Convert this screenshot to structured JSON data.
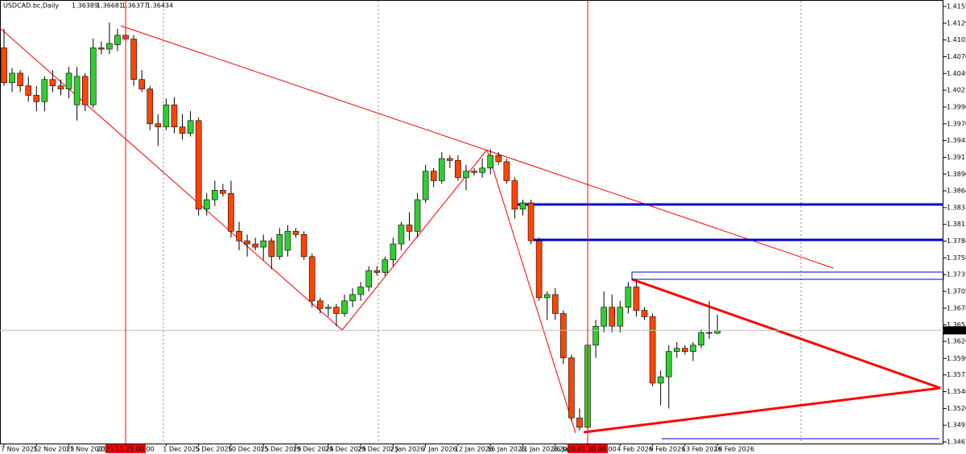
{
  "chart_data": {
    "type": "candlestick",
    "title": "USDCAD.bc,Daily",
    "categories": [
      "7 Nov 2025",
      null,
      null,
      null,
      "12 Nov 2025",
      null,
      null,
      null,
      "17 Nov 2025",
      null,
      null,
      null,
      null,
      null,
      null,
      "2025.11.25 00:00",
      null,
      null,
      null,
      null,
      "1 Dec 2025",
      null,
      null,
      null,
      "5 Dec 2025",
      null,
      null,
      null,
      "10 Dec 2025",
      null,
      null,
      null,
      "15 Dec 2025",
      null,
      null,
      null,
      "19 Dec 2025",
      null,
      null,
      null,
      "24 Dec 2025",
      null,
      null,
      null,
      "29 Dec 2025",
      null,
      null,
      null,
      "2 Jan 2026",
      null,
      null,
      null,
      "7 Jan 2026",
      null,
      null,
      null,
      "12 Jan 2026",
      null,
      null,
      null,
      "16 Jan 2026",
      null,
      null,
      null,
      "21 Jan 2026",
      null,
      null,
      null,
      "26 Jan 2026",
      null,
      null,
      null,
      "2026.01.30 00:00",
      null,
      null,
      null,
      "4 Feb 2026",
      null,
      null,
      null,
      "9 Feb 2026",
      null,
      null,
      null,
      "13 Feb 2026",
      null,
      null,
      null,
      "18 Feb 2026"
    ],
    "open": [
      1.409,
      1.4035,
      1.405,
      1.403,
      1.4015,
      1.4005,
      1.404,
      1.403,
      1.4025,
      1.4,
      1.4045,
      1.4,
      1.409,
      1.4088,
      1.4095,
      1.411,
      1.4104,
      1.404,
      1.4025,
      1.397,
      1.3965,
      1.4,
      1.3965,
      1.3955,
      1.3975,
      1.3835,
      1.385,
      1.3865,
      1.386,
      1.38,
      1.3785,
      1.378,
      1.3775,
      1.3785,
      1.376,
      1.377,
      1.38,
      1.3795,
      1.376,
      1.369,
      1.3678,
      1.368,
      1.367,
      1.369,
      1.37,
      1.3712,
      1.3738,
      1.3735,
      1.3755,
      1.378,
      1.381,
      1.38,
      1.385,
      1.3895,
      1.388,
      1.3915,
      1.3912,
      1.3885,
      1.3895,
      1.3893,
      1.39,
      1.392,
      1.391,
      1.388,
      1.3835,
      1.3845,
      1.3785,
      1.3695,
      1.37,
      1.367,
      1.36,
      1.3505,
      1.349,
      1.362,
      1.365,
      1.368,
      1.365,
      1.368,
      1.3712,
      1.3675,
      1.3665,
      1.356,
      1.357,
      1.361,
      1.3615,
      1.361,
      1.362,
      1.364,
      1.36389
    ],
    "high": [
      1.412,
      1.4058,
      1.4055,
      1.4045,
      1.403,
      1.4045,
      1.4055,
      1.404,
      1.406,
      1.406,
      1.405,
      1.4105,
      1.41,
      1.413,
      1.412,
      1.412,
      1.411,
      1.4055,
      1.403,
      1.3985,
      1.401,
      1.4012,
      1.3985,
      1.399,
      1.398,
      1.386,
      1.388,
      1.3875,
      1.388,
      1.3815,
      1.3795,
      1.379,
      1.3795,
      1.379,
      1.3805,
      1.381,
      1.3805,
      1.38,
      1.3765,
      1.3695,
      1.3685,
      1.3685,
      1.37,
      1.371,
      1.372,
      1.3745,
      1.3745,
      1.376,
      1.379,
      1.3815,
      1.383,
      1.386,
      1.3905,
      1.39,
      1.3925,
      1.392,
      1.392,
      1.3905,
      1.39,
      1.3915,
      1.393,
      1.3925,
      1.3915,
      1.3885,
      1.385,
      1.385,
      1.379,
      1.3705,
      1.371,
      1.3675,
      1.3605,
      1.352,
      1.363,
      1.366,
      1.3705,
      1.37,
      1.369,
      1.372,
      1.372,
      1.368,
      1.367,
      1.358,
      1.362,
      1.3625,
      1.362,
      1.3625,
      1.3645,
      1.369,
      1.36681
    ],
    "low": [
      1.403,
      1.402,
      1.402,
      1.4005,
      1.399,
      1.399,
      1.402,
      1.4015,
      1.401,
      1.3975,
      1.399,
      1.3995,
      1.408,
      1.408,
      1.4085,
      1.41,
      1.403,
      1.402,
      1.396,
      1.3935,
      1.396,
      1.3955,
      1.3945,
      1.395,
      1.3825,
      1.3825,
      1.384,
      1.3855,
      1.379,
      1.377,
      1.376,
      1.377,
      1.3755,
      1.374,
      1.3755,
      1.376,
      1.379,
      1.3755,
      1.368,
      1.367,
      1.3665,
      1.365,
      1.3665,
      1.368,
      1.369,
      1.3705,
      1.373,
      1.373,
      1.3745,
      1.377,
      1.3785,
      1.379,
      1.3845,
      1.387,
      1.3875,
      1.39,
      1.388,
      1.3865,
      1.3888,
      1.3885,
      1.389,
      1.3905,
      1.3875,
      1.382,
      1.3825,
      1.378,
      1.369,
      1.366,
      1.366,
      1.359,
      1.35,
      1.3485,
      1.3485,
      1.36,
      1.364,
      1.364,
      1.364,
      1.367,
      1.3665,
      1.366,
      1.3555,
      1.3525,
      1.352,
      1.36,
      1.3605,
      1.3595,
      1.3615,
      1.363,
      1.36377
    ],
    "close": [
      1.4035,
      1.405,
      1.403,
      1.4015,
      1.4005,
      1.404,
      1.403,
      1.4025,
      1.405,
      1.4045,
      1.4,
      1.409,
      1.4088,
      1.4097,
      1.411,
      1.4104,
      1.404,
      1.4025,
      1.397,
      1.3965,
      1.4,
      1.3965,
      1.3955,
      1.3975,
      1.3835,
      1.385,
      1.3865,
      1.386,
      1.38,
      1.3785,
      1.378,
      1.3775,
      1.3785,
      1.376,
      1.3795,
      1.38,
      1.3795,
      1.376,
      1.369,
      1.3678,
      1.368,
      1.367,
      1.369,
      1.37,
      1.3712,
      1.3738,
      1.3735,
      1.3755,
      1.378,
      1.381,
      1.38,
      1.385,
      1.3895,
      1.388,
      1.3915,
      1.3912,
      1.3885,
      1.3895,
      1.3893,
      1.39,
      1.392,
      1.391,
      1.388,
      1.3835,
      1.3845,
      1.3785,
      1.3695,
      1.37,
      1.367,
      1.36,
      1.3505,
      1.349,
      1.362,
      1.365,
      1.368,
      1.365,
      1.368,
      1.3712,
      1.3675,
      1.3665,
      1.356,
      1.357,
      1.361,
      1.3615,
      1.361,
      1.362,
      1.364,
      1.3639,
      1.36434
    ],
    "up_color": "#32cd32",
    "down_color": "#ff4500",
    "ylim": [
      1.34645,
      1.41657
    ],
    "yticks": [
      1.41555,
      {
        "value": 1.4129,
        "label": "1.41290"
      },
      1.41025,
      {
        "value": 1.4076,
        "label": "1.40760"
      },
      1.40495,
      {
        "value": 1.4023,
        "label": "1.40230"
      },
      1.39965,
      {
        "value": 1.397,
        "label": "1.39700"
      },
      1.39435,
      {
        "value": 1.3917,
        "label": "1.39170"
      },
      1.38905,
      {
        "value": 1.3864,
        "label": "1.38640"
      },
      1.38375,
      {
        "value": 1.3811,
        "label": "1.38110"
      },
      1.37845,
      {
        "value": 1.3758,
        "label": "1.37580"
      },
      1.37315,
      {
        "value": 1.3705,
        "label": "1.37050"
      },
      1.36785,
      {
        "value": 1.3652,
        "label": "1.36520"
      },
      {
        "value": 1.3626,
        "label": "1.36260"
      },
      {
        "value": 1.3599,
        "label": "1.35990"
      },
      {
        "value": 1.3573,
        "label": "1.35730"
      },
      1.35465,
      {
        "value": 1.352,
        "label": "1.35200"
      },
      1.34935,
      {
        "value": 1.3467,
        "label": "1.34670"
      }
    ]
  }
}
